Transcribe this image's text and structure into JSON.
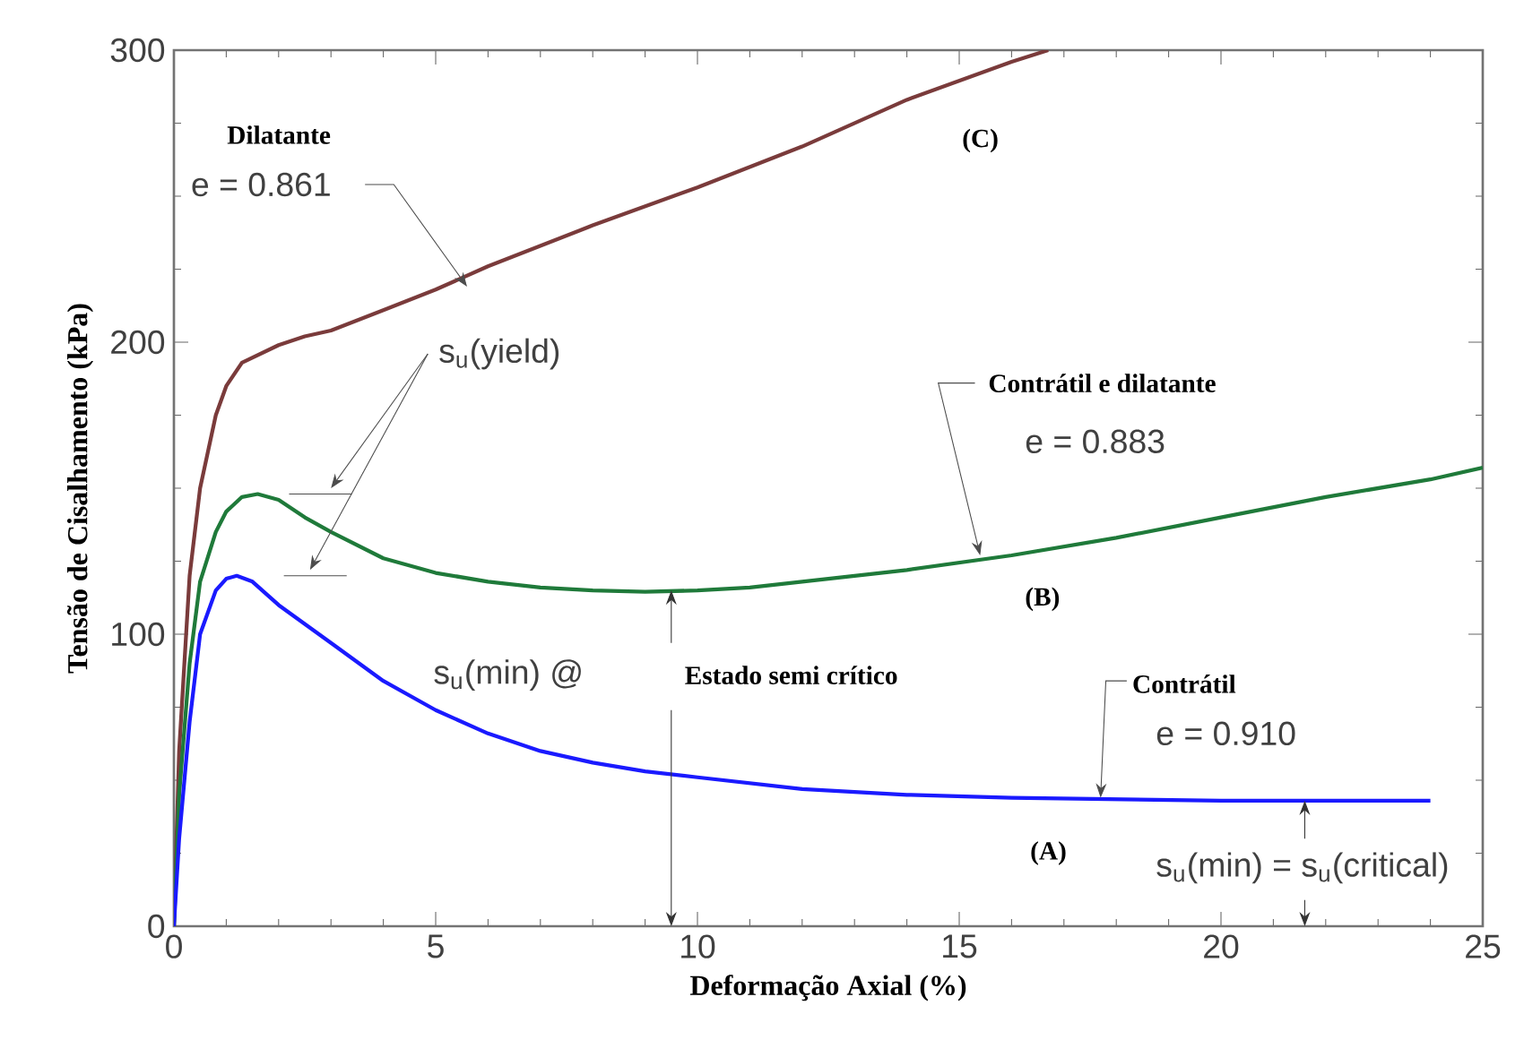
{
  "chart_data": {
    "type": "line",
    "xlabel": "Deformação Axial (%)",
    "ylabel": "Tensão de Cisalhamento (kPa)",
    "xlim": [
      0,
      25
    ],
    "ylim": [
      0,
      300
    ],
    "xticks": [
      0,
      5,
      10,
      15,
      20,
      25
    ],
    "yticks": [
      0,
      100,
      200,
      300
    ],
    "grid": false,
    "marker": "none",
    "line_style": "solid",
    "series": [
      {
        "color": "#7a3b3b",
        "x": [
          0,
          0.1,
          0.3,
          0.5,
          0.8,
          1.0,
          1.3,
          2,
          2.5,
          3,
          4,
          5,
          6,
          8,
          10,
          12,
          14,
          16,
          16.7
        ],
        "values": [
          0,
          60,
          120,
          150,
          175,
          185,
          193,
          199,
          202,
          204,
          211,
          218,
          226,
          240,
          253,
          267,
          283,
          296,
          300
        ]
      },
      {
        "color": "#1f7a3a",
        "x": [
          0,
          0.1,
          0.3,
          0.5,
          0.8,
          1.0,
          1.3,
          1.6,
          2,
          2.5,
          3,
          4,
          5,
          6,
          7,
          8,
          9,
          10,
          11,
          12,
          14,
          16,
          18,
          20,
          22,
          24,
          25
        ],
        "values": [
          0,
          45,
          90,
          118,
          135,
          142,
          147,
          148,
          146,
          140,
          135,
          126,
          121,
          118,
          116,
          115,
          114.5,
          115,
          116,
          118,
          122,
          127,
          133,
          140,
          147,
          153,
          157
        ]
      },
      {
        "color": "#1a1aff",
        "x": [
          0,
          0.1,
          0.3,
          0.5,
          0.8,
          1.0,
          1.2,
          1.5,
          2,
          3,
          4,
          5,
          6,
          7,
          8,
          9,
          10,
          12,
          14,
          16,
          18,
          20,
          22,
          24
        ],
        "values": [
          0,
          30,
          70,
          100,
          115,
          119,
          120,
          118,
          110,
          97,
          84,
          74,
          66,
          60,
          56,
          53,
          51,
          47,
          45,
          44,
          43.5,
          43,
          43,
          43
        ]
      }
    ],
    "annotations": [
      "Dilatante",
      {
        "text": "e = 0.861",
        "x": 5.6,
        "y": 219
      },
      "(C)",
      "s$_{u}$(yield)",
      {
        "text": "Contrátil e dilatante",
        "x": 15.4,
        "y": 127
      },
      "e = 0.883",
      "(B)",
      "s$_{u}$(min) @",
      {
        "text": "Estado semi crítico",
        "x": 9.5,
        "y": 115
      },
      {
        "text": "Contrátil",
        "x": 17.7,
        "y": 44
      },
      "e = 0.910",
      "(A)",
      {
        "text": "s$_{u}$(min) = s$_{u}$(critical)",
        "x": 21.6,
        "y": 43
      }
    ]
  }
}
